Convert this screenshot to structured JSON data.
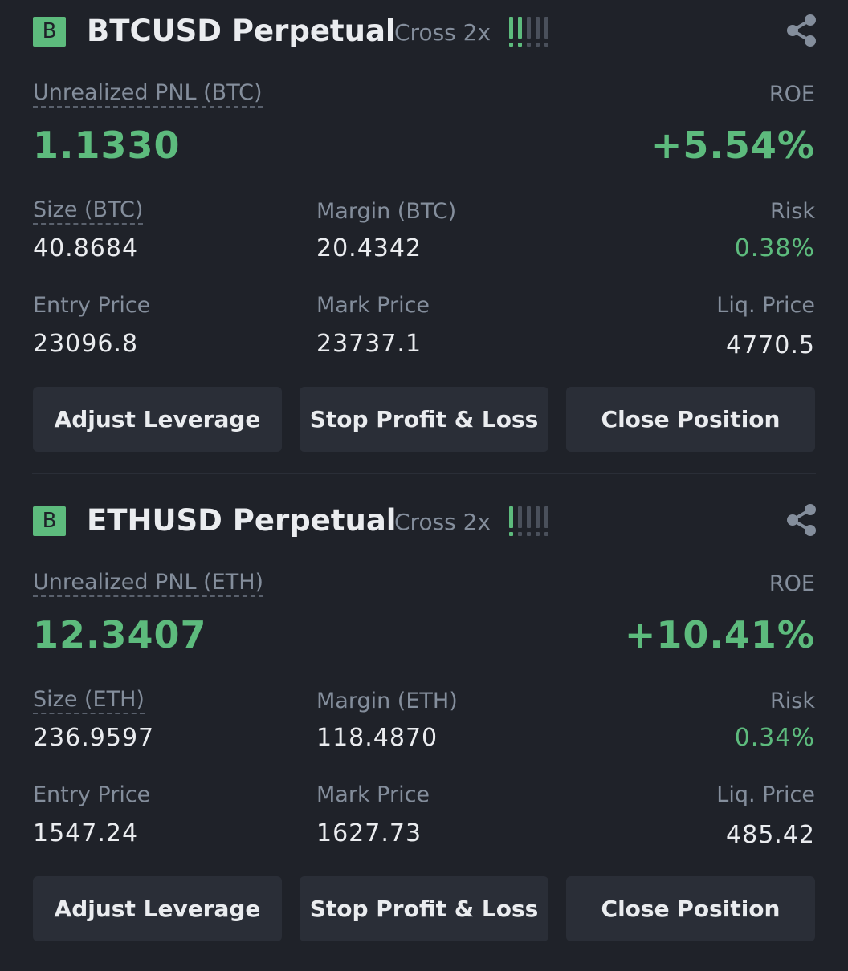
{
  "positions": [
    {
      "badge": "B",
      "symbol": "BTCUSD Perpetual",
      "margin_mode": "Cross 2x",
      "risk_level_bars": 2,
      "unrealized_pnl_label": "Unrealized PNL (BTC)",
      "unrealized_pnl": "1.1330",
      "roe_label": "ROE",
      "roe": "+5.54%",
      "size_label": "Size (BTC)",
      "size": "40.8684",
      "margin_label": "Margin (BTC)",
      "margin": "20.4342",
      "risk_label": "Risk",
      "risk": "0.38%",
      "entry_price_label": "Entry Price",
      "entry_price": "23096.8",
      "mark_price_label": "Mark Price",
      "mark_price": "23737.1",
      "liq_price_label": "Liq. Price",
      "liq_price": "4770.5",
      "buttons": {
        "adjust_leverage": "Adjust Leverage",
        "stop_profit_loss": "Stop Profit & Loss",
        "close_position": "Close Position"
      },
      "icons": {
        "share": "share-icon"
      }
    },
    {
      "badge": "B",
      "symbol": "ETHUSD Perpetual",
      "margin_mode": "Cross 2x",
      "risk_level_bars": 1,
      "unrealized_pnl_label": "Unrealized PNL (ETH)",
      "unrealized_pnl": "12.3407",
      "roe_label": "ROE",
      "roe": "+10.41%",
      "size_label": "Size (ETH)",
      "size": "236.9597",
      "margin_label": "Margin (ETH)",
      "margin": "118.4870",
      "risk_label": "Risk",
      "risk": "0.34%",
      "entry_price_label": "Entry Price",
      "entry_price": "1547.24",
      "mark_price_label": "Mark Price",
      "mark_price": "1627.73",
      "liq_price_label": "Liq. Price",
      "liq_price": "485.42",
      "buttons": {
        "adjust_leverage": "Adjust Leverage",
        "stop_profit_loss": "Stop Profit & Loss",
        "close_position": "Close Position"
      },
      "icons": {
        "share": "share-icon"
      }
    }
  ],
  "colors": {
    "background": "#1f2229",
    "positive": "#5dbb7d",
    "muted": "#848e9c",
    "text": "#eaecef",
    "button": "#2a2e37",
    "risk_bar_inactive": "#4a505b"
  }
}
